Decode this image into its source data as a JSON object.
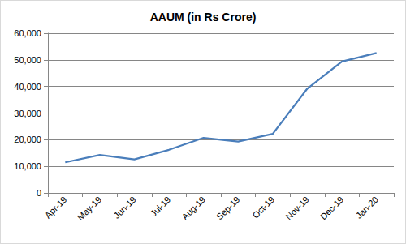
{
  "chart_data": {
    "type": "line",
    "title": "AAUM (in Rs Crore)",
    "categories": [
      "Apr-19",
      "May-19",
      "Jun-19",
      "Jul-19",
      "Aug-19",
      "Sep-19",
      "Oct-19",
      "Nov-19",
      "Dec-19",
      "Jan-20"
    ],
    "values": [
      11500,
      14300,
      12600,
      16200,
      20700,
      19300,
      22200,
      39200,
      49400,
      52600
    ],
    "color": "#4a7ebb",
    "ylim": [
      0,
      60000
    ],
    "yticks": [
      0,
      {
        "value": 10000,
        "label": "10,000"
      },
      {
        "value": 20000,
        "label": "20,000"
      },
      {
        "value": 30000,
        "label": "30,000"
      },
      {
        "value": 40000,
        "label": "40,000"
      },
      {
        "value": 50000,
        "label": "50,000"
      },
      {
        "value": 60000,
        "label": "60,000"
      }
    ],
    "grid": true
  }
}
